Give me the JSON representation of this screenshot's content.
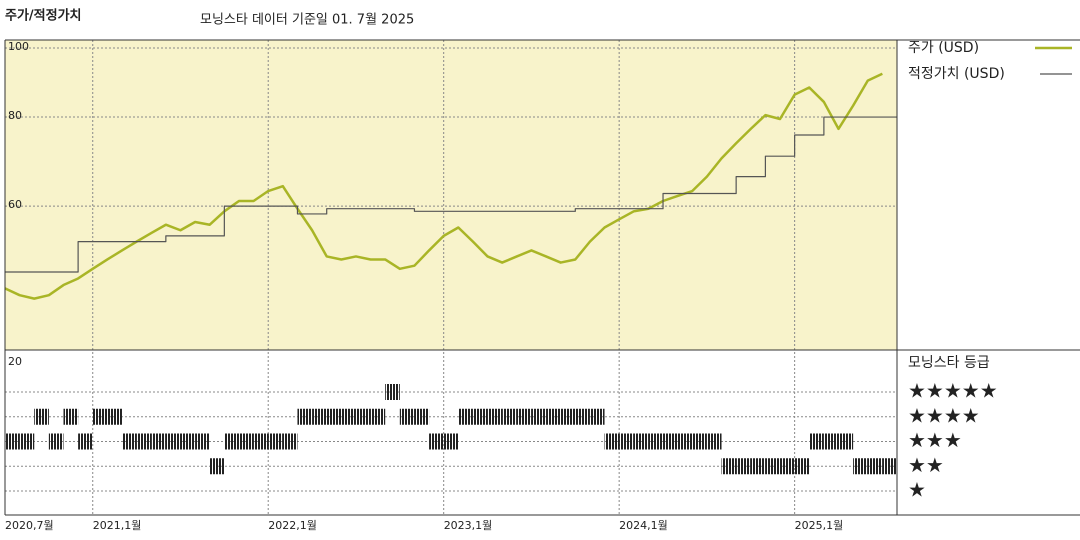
{
  "chart_data": {
    "type": "line",
    "title": "주가/적정가치",
    "subtitle": "모닝스타 데이터 기준일 01. 7월 2025",
    "x": [
      "2020-07",
      "2020-08",
      "2020-09",
      "2020-10",
      "2020-11",
      "2020-12",
      "2021-01",
      "2021-02",
      "2021-03",
      "2021-04",
      "2021-05",
      "2021-06",
      "2021-07",
      "2021-08",
      "2021-09",
      "2021-10",
      "2021-11",
      "2021-12",
      "2022-01",
      "2022-02",
      "2022-03",
      "2022-04",
      "2022-05",
      "2022-06",
      "2022-07",
      "2022-08",
      "2022-09",
      "2022-10",
      "2022-11",
      "2022-12",
      "2023-01",
      "2023-02",
      "2023-03",
      "2023-04",
      "2023-05",
      "2023-06",
      "2023-07",
      "2023-08",
      "2023-09",
      "2023-10",
      "2023-11",
      "2023-12",
      "2024-01",
      "2024-02",
      "2024-03",
      "2024-04",
      "2024-05",
      "2024-06",
      "2024-07",
      "2024-08",
      "2024-09",
      "2024-10",
      "2024-11",
      "2024-12",
      "2025-01",
      "2025-02",
      "2025-03",
      "2025-04",
      "2025-05",
      "2025-06",
      "2025-07"
    ],
    "xlim": [
      "2020-07",
      "2025-08"
    ],
    "xticks": [
      {
        "value": "2020-07",
        "label": "2020,7월"
      },
      {
        "value": "2021-01",
        "label": "2021,1월"
      },
      {
        "value": "2022-01",
        "label": "2022,1월"
      },
      {
        "value": "2023-01",
        "label": "2023,1월"
      },
      {
        "value": "2024-01",
        "label": "2024,1월"
      },
      {
        "value": "2025-01",
        "label": "2025,1월"
      }
    ],
    "ylim": [
      37.7,
      102.6
    ],
    "yticks": [
      60,
      80,
      100
    ],
    "log_scale": true,
    "grid": true,
    "series": [
      {
        "name": "주가 (USD)",
        "color": "#a9b526",
        "values": [
          46,
          45,
          44.5,
          45,
          46.5,
          47.5,
          49,
          50.5,
          52,
          53.5,
          55,
          56.5,
          55.5,
          57,
          56.5,
          59,
          61,
          61,
          63,
          64,
          59.5,
          55.5,
          51,
          50.5,
          51,
          50.5,
          50.5,
          49,
          49.5,
          52,
          54.5,
          56,
          53.5,
          51,
          50,
          51,
          52,
          51,
          50,
          50.5,
          53.5,
          56,
          57.5,
          59,
          59.5,
          61,
          62,
          63,
          66,
          70,
          73.5,
          77,
          80.5,
          79.5,
          86,
          88,
          84,
          77,
          83,
          90,
          92
        ]
      },
      {
        "name": "적정가치 (USD)",
        "color": "#555555",
        "step": true,
        "values": [
          48.5,
          48.5,
          48.5,
          48.5,
          48.5,
          53.5,
          53.5,
          53.5,
          53.5,
          53.5,
          53.5,
          54.5,
          54.5,
          54.5,
          54.5,
          60,
          60,
          60,
          60,
          60,
          58.5,
          58.5,
          59.5,
          59.5,
          59.5,
          59.5,
          59.5,
          59.5,
          59,
          59,
          59,
          59,
          59,
          59,
          59,
          59,
          59,
          59,
          59,
          59.5,
          59.5,
          59.5,
          59.5,
          59.5,
          59.5,
          62.5,
          62.5,
          62.5,
          62.5,
          62.5,
          66,
          66,
          70.5,
          70.5,
          75.5,
          75.5,
          80,
          80,
          80,
          80,
          80
        ]
      }
    ],
    "ratings": {
      "title": "모닝스타 등급",
      "top_label": "20",
      "levels": [
        5,
        4,
        3,
        2,
        1
      ],
      "level_labels": [
        "★★★★★",
        "★★★★",
        "★★★",
        "★★",
        "★"
      ],
      "color": "#222222",
      "values": [
        3,
        3,
        4,
        3,
        4,
        3,
        4,
        4,
        3,
        3,
        3,
        3,
        3,
        3,
        2,
        3,
        3,
        3,
        3,
        3,
        4,
        4,
        4,
        4,
        4,
        4,
        5,
        4,
        4,
        3,
        3,
        4,
        4,
        4,
        4,
        4,
        4,
        4,
        4,
        4,
        4,
        3,
        3,
        3,
        3,
        3,
        3,
        3,
        3,
        2,
        2,
        2,
        2,
        2,
        2,
        3,
        3,
        3,
        2,
        2,
        2
      ]
    }
  }
}
